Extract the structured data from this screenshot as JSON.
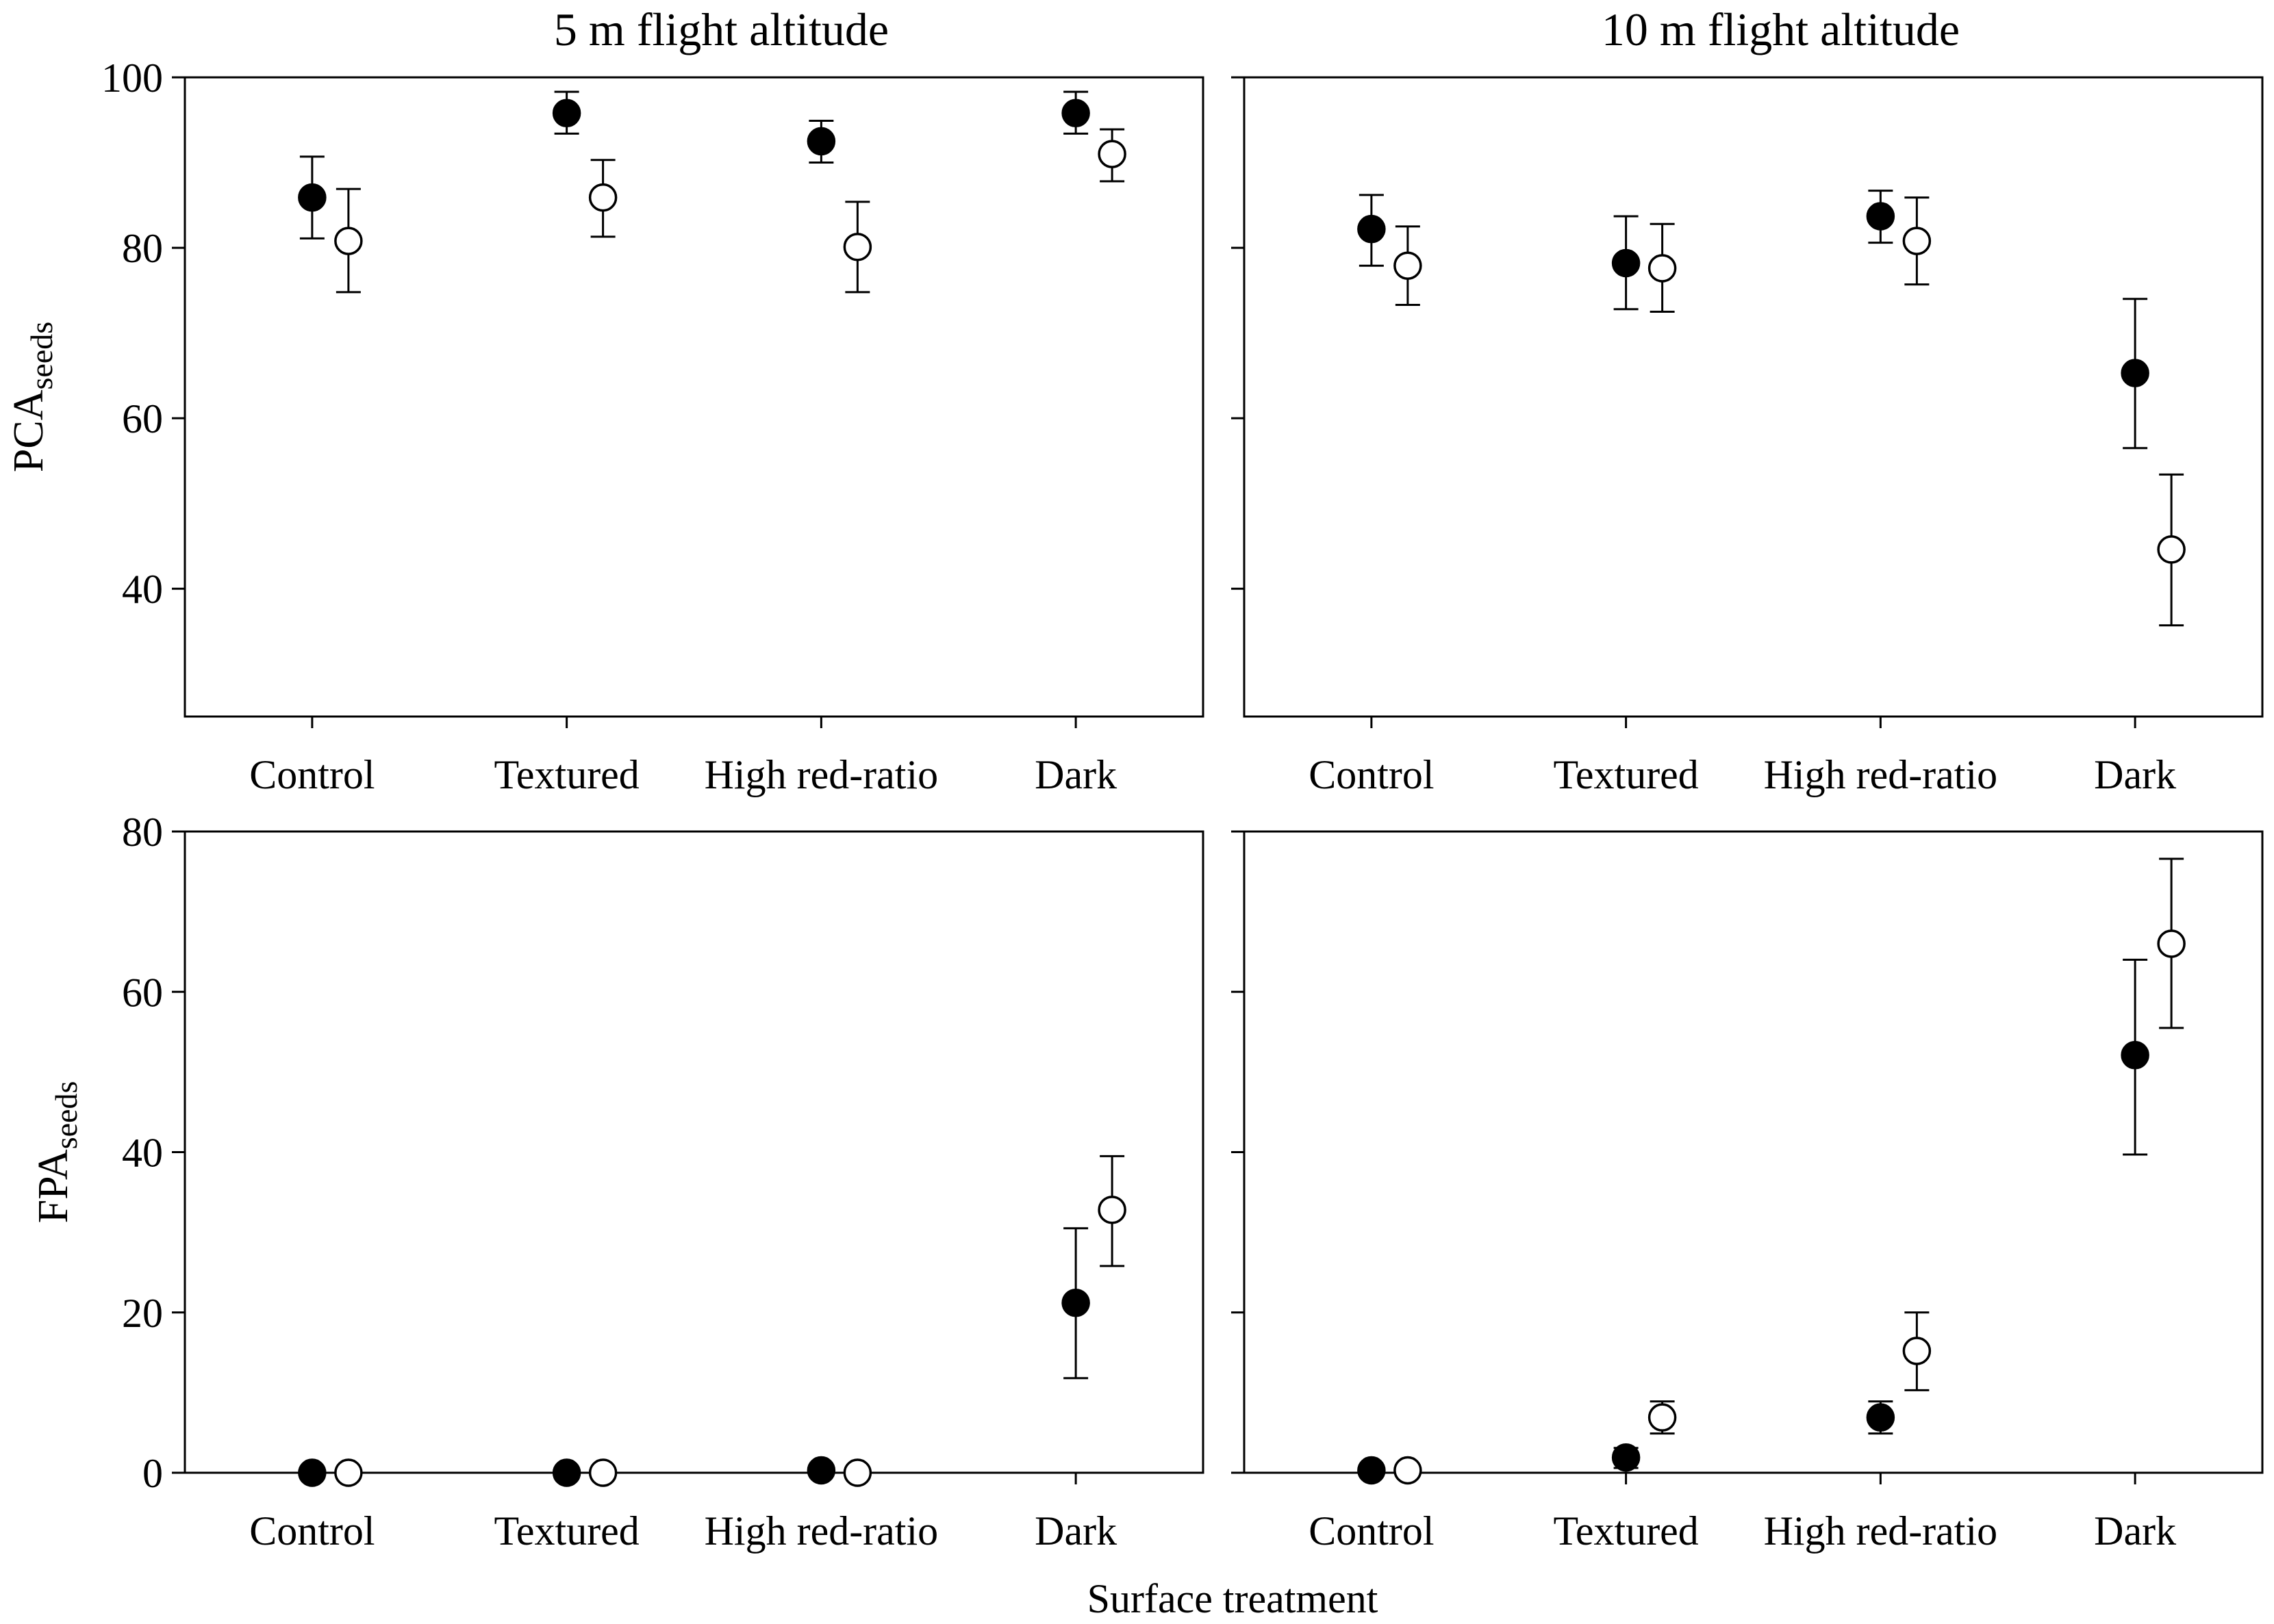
{
  "figure": {
    "xlabel": "Surface treatment",
    "background": "#ffffff",
    "ink": "#000000"
  },
  "chart_data": [
    {
      "type": "scatter",
      "title": "5 m flight altitude",
      "ylabel": "PCA",
      "ylabel_sub": "seeds",
      "categories": [
        "Control",
        "Textured",
        "High red-ratio",
        "Dark"
      ],
      "ylim": [
        25,
        100
      ],
      "yticks": [
        40,
        60,
        80,
        100
      ],
      "show_ytick_labels": true,
      "series": [
        {
          "fill": "#000000",
          "values": [
            85.9,
            95.8,
            92.5,
            95.8
          ],
          "lower": [
            81.1,
            93.4,
            90.0,
            93.4
          ],
          "upper": [
            90.7,
            98.3,
            94.9,
            98.3
          ]
        },
        {
          "fill": "#ffffff",
          "values": [
            80.8,
            85.9,
            80.1,
            91.0
          ],
          "lower": [
            74.8,
            81.3,
            74.8,
            87.8
          ],
          "upper": [
            86.9,
            90.3,
            85.4,
            93.9
          ]
        }
      ]
    },
    {
      "type": "scatter",
      "title": "10 m flight altitude",
      "categories": [
        "Control",
        "Textured",
        "High red-ratio",
        "Dark"
      ],
      "ylim": [
        25,
        100
      ],
      "yticks": [
        40,
        60,
        80,
        100
      ],
      "show_ytick_labels": false,
      "series": [
        {
          "fill": "#000000",
          "values": [
            82.2,
            78.2,
            83.7,
            65.3
          ],
          "lower": [
            77.9,
            72.8,
            80.6,
            56.5
          ],
          "upper": [
            86.2,
            83.7,
            86.7,
            74.0
          ]
        },
        {
          "fill": "#ffffff",
          "values": [
            77.9,
            77.6,
            80.8,
            44.6
          ],
          "lower": [
            73.3,
            72.5,
            75.7,
            35.7
          ],
          "upper": [
            82.5,
            82.8,
            85.9,
            53.4
          ]
        }
      ]
    },
    {
      "type": "scatter",
      "ylabel": "FPA",
      "ylabel_sub": "seeds",
      "categories": [
        "Control",
        "Textured",
        "High red-ratio",
        "Dark"
      ],
      "ylim": [
        0,
        80
      ],
      "yticks": [
        0,
        20,
        40,
        60,
        80
      ],
      "show_ytick_labels": true,
      "series": [
        {
          "fill": "#000000",
          "values": [
            0,
            0,
            0.3,
            21.2
          ],
          "lower": [
            0,
            0,
            0.3,
            11.8
          ],
          "upper": [
            0,
            0,
            0.3,
            30.5
          ]
        },
        {
          "fill": "#ffffff",
          "values": [
            0,
            0,
            0,
            32.8
          ],
          "lower": [
            0,
            0,
            0,
            25.8
          ],
          "upper": [
            0,
            0,
            0,
            39.5
          ]
        }
      ]
    },
    {
      "type": "scatter",
      "categories": [
        "Control",
        "Textured",
        "High red-ratio",
        "Dark"
      ],
      "ylim": [
        0,
        80
      ],
      "yticks": [
        0,
        20,
        40,
        60,
        80
      ],
      "show_ytick_labels": false,
      "series": [
        {
          "fill": "#000000",
          "values": [
            0.3,
            1.9,
            6.9,
            52.1
          ],
          "lower": [
            0.3,
            0.6,
            4.9,
            39.7
          ],
          "upper": [
            0.3,
            3.1,
            8.9,
            64.0
          ]
        },
        {
          "fill": "#ffffff",
          "values": [
            0.3,
            6.9,
            15.2,
            66.0
          ],
          "lower": [
            0.3,
            4.9,
            10.3,
            55.5
          ],
          "upper": [
            0.3,
            8.9,
            20.0,
            76.6
          ]
        }
      ]
    }
  ]
}
